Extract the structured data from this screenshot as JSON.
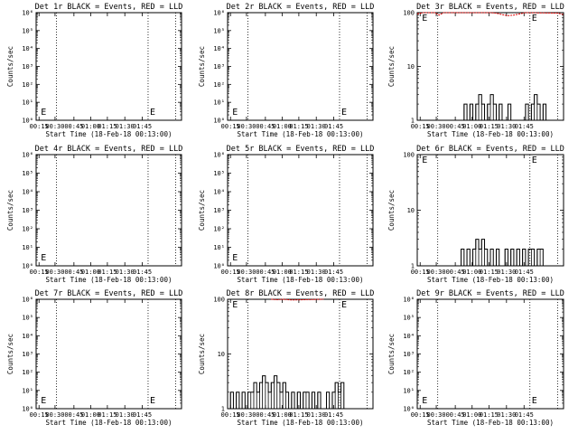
{
  "chart_data": [
    {
      "id": "det1",
      "type": "line",
      "title": "Det 1r BLACK = Events, RED = LLD",
      "scale": "log",
      "ylim": [
        1,
        1000000
      ],
      "yticks": [
        "10⁰",
        "10¹",
        "10²",
        "10³",
        "10⁴",
        "10⁵",
        "10⁶"
      ],
      "xlabel": "Start Time (18-Feb-18 00:13:00)",
      "ylabel": "Counts/sec",
      "xticks": [
        "00:15",
        "00:30",
        "00:45",
        "01:00",
        "01:15",
        "01:30",
        "01:45"
      ],
      "markers": [
        "E",
        "E"
      ],
      "events": [],
      "lld": []
    },
    {
      "id": "det2",
      "type": "line",
      "title": "Det 2r BLACK = Events, RED = LLD",
      "scale": "log",
      "ylim": [
        1,
        1000000
      ],
      "yticks": [
        "10⁰",
        "10¹",
        "10²",
        "10³",
        "10⁴",
        "10⁵",
        "10⁶"
      ],
      "xlabel": "Start Time (18-Feb-18 00:13:00)",
      "ylabel": "Counts/sec",
      "xticks": [
        "00:15",
        "00:30",
        "00:45",
        "01:00",
        "01:15",
        "01:30",
        "01:45"
      ],
      "markers": [
        "E",
        "E"
      ],
      "events": [],
      "lld": []
    },
    {
      "id": "det3",
      "type": "line",
      "title": "Det 3r BLACK = Events, RED = LLD",
      "scale": "log",
      "ylim": [
        1,
        100
      ],
      "yticks": [
        "1",
        "10",
        "100"
      ],
      "xlabel": "Start Time (18-Feb-18 00:13:00)",
      "ylabel": "Counts/sec",
      "xticks": [
        "00:15",
        "00:30",
        "00:45",
        "01:00",
        "01:15",
        "01:30",
        "01:45"
      ],
      "markers": [
        "E",
        "E"
      ],
      "events": [
        [
          30,
          1
        ],
        [
          32,
          2
        ],
        [
          34,
          1
        ],
        [
          36,
          2
        ],
        [
          38,
          1
        ],
        [
          40,
          2
        ],
        [
          42,
          3
        ],
        [
          44,
          2
        ],
        [
          46,
          1
        ],
        [
          48,
          2
        ],
        [
          50,
          3
        ],
        [
          52,
          2
        ],
        [
          54,
          1
        ],
        [
          56,
          2
        ],
        [
          58,
          1
        ],
        [
          60,
          1
        ],
        [
          62,
          2
        ],
        [
          64,
          1
        ],
        [
          66,
          1
        ],
        [
          68,
          1
        ],
        [
          70,
          1
        ],
        [
          72,
          1
        ],
        [
          74,
          2
        ],
        [
          76,
          1
        ],
        [
          78,
          2
        ],
        [
          80,
          3
        ],
        [
          82,
          2
        ],
        [
          84,
          1
        ],
        [
          86,
          2
        ],
        [
          88,
          1
        ]
      ],
      "lld": [
        [
          0,
          95
        ],
        [
          4,
          100
        ],
        [
          8,
          100
        ],
        [
          12,
          100
        ],
        [
          15,
          90
        ],
        [
          18,
          100
        ],
        [
          50,
          100
        ],
        [
          54,
          98
        ],
        [
          58,
          92
        ],
        [
          62,
          88
        ],
        [
          66,
          90
        ],
        [
          70,
          95
        ],
        [
          74,
          100
        ],
        [
          96,
          98
        ],
        [
          100,
          92
        ]
      ]
    },
    {
      "id": "det4",
      "type": "line",
      "title": "Det 4r BLACK = Events, RED = LLD",
      "scale": "log",
      "ylim": [
        1,
        1000000
      ],
      "yticks": [
        "10⁰",
        "10¹",
        "10²",
        "10³",
        "10⁴",
        "10⁵",
        "10⁶"
      ],
      "xlabel": "Start Time (18-Feb-18 00:13:00)",
      "ylabel": "Counts/sec",
      "xticks": [
        "00:15",
        "00:30",
        "00:45",
        "01:00",
        "01:15",
        "01:30",
        "01:45"
      ],
      "markers": [
        "E"
      ],
      "events": [],
      "lld": []
    },
    {
      "id": "det5",
      "type": "line",
      "title": "Det 5r BLACK = Events, RED = LLD",
      "scale": "log",
      "ylim": [
        1,
        1000000
      ],
      "yticks": [
        "10⁰",
        "10¹",
        "10²",
        "10³",
        "10⁴",
        "10⁵",
        "10⁶"
      ],
      "xlabel": "Start Time (18-Feb-18 00:13:00)",
      "ylabel": "Counts/sec",
      "xticks": [
        "00:15",
        "00:30",
        "00:45",
        "01:00",
        "01:15",
        "01:30",
        "01:45"
      ],
      "markers": [
        "E"
      ],
      "events": [],
      "lld": []
    },
    {
      "id": "det6",
      "type": "line",
      "title": "Det 6r BLACK = Events, RED = LLD",
      "scale": "log",
      "ylim": [
        1,
        100
      ],
      "yticks": [
        "1",
        "10",
        "100"
      ],
      "xlabel": "Start Time (18-Feb-18 00:13:00)",
      "ylabel": "Counts/sec",
      "xticks": [
        "00:15",
        "00:30",
        "00:45",
        "01:00",
        "01:15",
        "01:30",
        "01:45"
      ],
      "markers": [
        "E",
        "E"
      ],
      "events": [
        [
          28,
          1
        ],
        [
          30,
          2
        ],
        [
          32,
          1
        ],
        [
          34,
          2
        ],
        [
          36,
          1
        ],
        [
          38,
          2
        ],
        [
          40,
          3
        ],
        [
          42,
          2
        ],
        [
          44,
          3
        ],
        [
          46,
          2
        ],
        [
          48,
          1
        ],
        [
          50,
          2
        ],
        [
          52,
          1
        ],
        [
          54,
          2
        ],
        [
          56,
          1
        ],
        [
          58,
          1
        ],
        [
          60,
          2
        ],
        [
          62,
          1
        ],
        [
          64,
          2
        ],
        [
          66,
          1
        ],
        [
          68,
          2
        ],
        [
          70,
          1
        ],
        [
          72,
          2
        ],
        [
          74,
          1
        ],
        [
          76,
          2
        ],
        [
          78,
          2
        ],
        [
          80,
          1
        ],
        [
          82,
          2
        ],
        [
          84,
          2
        ]
      ],
      "lld": []
    },
    {
      "id": "det7",
      "type": "line",
      "title": "Det 7r BLACK = Events, RED = LLD",
      "scale": "log",
      "ylim": [
        1,
        1000000
      ],
      "yticks": [
        "10⁰",
        "10¹",
        "10²",
        "10³",
        "10⁴",
        "10⁵",
        "10⁶"
      ],
      "xlabel": "Start Time (18-Feb-18 00:13:00)",
      "ylabel": "Counts/sec",
      "xticks": [
        "00:15",
        "00:30",
        "00:45",
        "01:00",
        "01:15",
        "01:30",
        "01:45"
      ],
      "markers": [
        "E",
        "E"
      ],
      "events": [],
      "lld": []
    },
    {
      "id": "det8",
      "type": "line",
      "title": "Det 8r BLACK = Events, RED = LLD",
      "scale": "log",
      "ylim": [
        1,
        100
      ],
      "yticks": [
        "1",
        "10",
        "100"
      ],
      "xlabel": "Start Time (18-Feb-18 00:13:00)",
      "ylabel": "Counts/sec",
      "xticks": [
        "00:15",
        "00:30",
        "00:45",
        "01:00",
        "01:15",
        "01:30",
        "01:45"
      ],
      "markers": [
        "E",
        "E"
      ],
      "events": [
        [
          0,
          1
        ],
        [
          2,
          2
        ],
        [
          4,
          1
        ],
        [
          6,
          2
        ],
        [
          8,
          1
        ],
        [
          10,
          2
        ],
        [
          12,
          1
        ],
        [
          14,
          2
        ],
        [
          16,
          2
        ],
        [
          18,
          3
        ],
        [
          20,
          2
        ],
        [
          22,
          3
        ],
        [
          24,
          4
        ],
        [
          26,
          3
        ],
        [
          28,
          2
        ],
        [
          30,
          3
        ],
        [
          32,
          4
        ],
        [
          34,
          3
        ],
        [
          36,
          2
        ],
        [
          38,
          3
        ],
        [
          40,
          2
        ],
        [
          42,
          1
        ],
        [
          44,
          2
        ],
        [
          46,
          1
        ],
        [
          48,
          2
        ],
        [
          50,
          1
        ],
        [
          52,
          2
        ],
        [
          54,
          2
        ],
        [
          56,
          1
        ],
        [
          58,
          2
        ],
        [
          60,
          1
        ],
        [
          62,
          2
        ],
        [
          64,
          1
        ],
        [
          66,
          1
        ],
        [
          68,
          2
        ],
        [
          70,
          1
        ],
        [
          72,
          2
        ],
        [
          74,
          3
        ],
        [
          76,
          2
        ],
        [
          78,
          3
        ]
      ],
      "lld": [
        [
          30,
          100
        ],
        [
          34,
          98
        ],
        [
          38,
          100
        ],
        [
          44,
          97
        ],
        [
          66,
          100
        ]
      ]
    },
    {
      "id": "det9",
      "type": "line",
      "title": "Det 9r BLACK = Events, RED = LLD",
      "scale": "log",
      "ylim": [
        1,
        1000000
      ],
      "yticks": [
        "10⁰",
        "10¹",
        "10²",
        "10³",
        "10⁴",
        "10⁵",
        "10⁶"
      ],
      "xlabel": "Start Time (18-Feb-18 00:13:00)",
      "ylabel": "Counts/sec",
      "xticks": [
        "00:15",
        "00:30",
        "00:45",
        "01:00",
        "01:15",
        "01:30",
        "01:45"
      ],
      "markers": [
        "E",
        "E"
      ],
      "events": [],
      "lld": []
    }
  ]
}
